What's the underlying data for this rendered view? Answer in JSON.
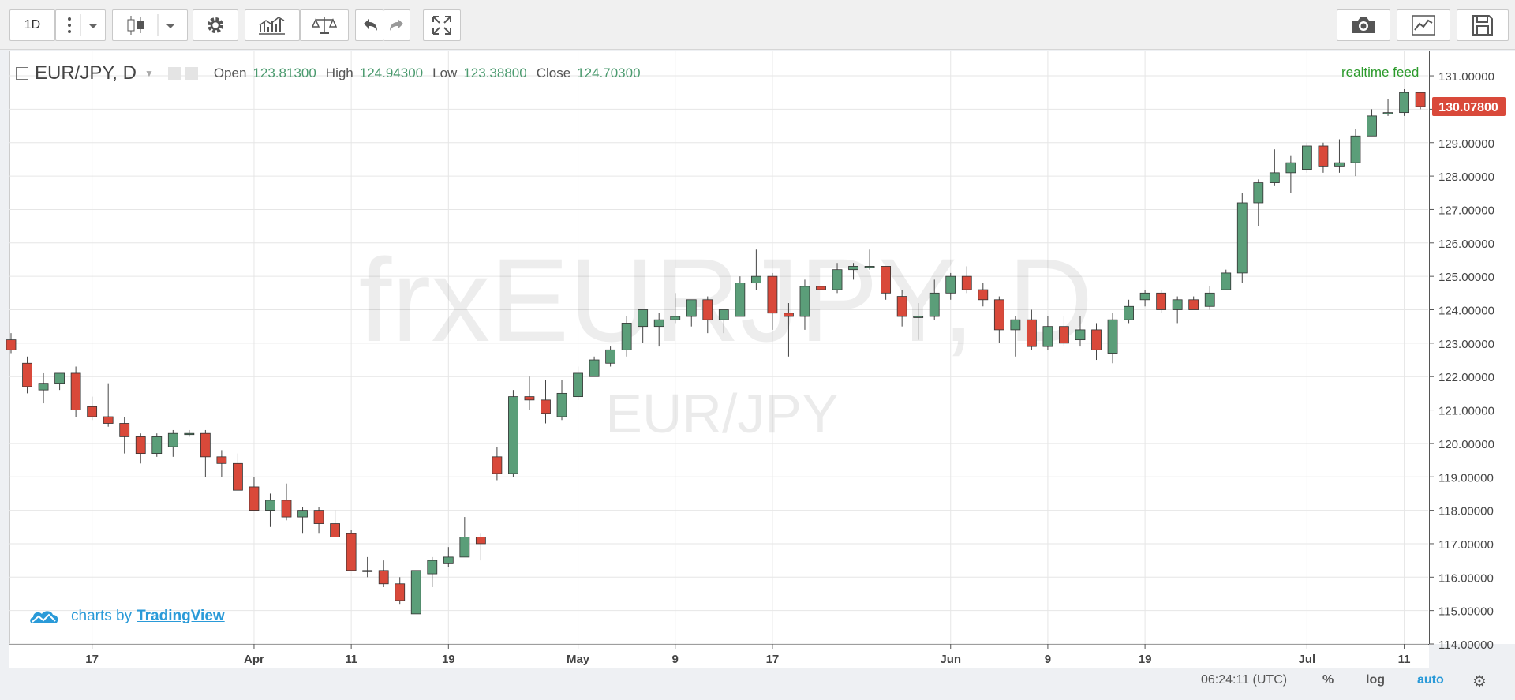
{
  "toolbar": {
    "interval": "1D",
    "icons": [
      "more-icon",
      "dropdown-arrow-icon",
      "candles-icon",
      "dropdown-arrow-icon",
      "gear-icon",
      "indicators-icon",
      "compare-icon",
      "undo-icon",
      "redo-icon",
      "fullscreen-icon",
      "camera-icon",
      "chart-icon",
      "save-icon"
    ]
  },
  "legend": {
    "symbol": "EUR/JPY, D",
    "open_label": "Open",
    "open": "123.81300",
    "high_label": "High",
    "high": "124.94300",
    "low_label": "Low",
    "low": "123.38800",
    "close_label": "Close",
    "close": "124.70300"
  },
  "watermark": {
    "main": "frxEURJPY, D",
    "sub": "EUR/JPY"
  },
  "realtime_label": "realtime feed",
  "current_price": "130.07800",
  "branding": {
    "prefix": "charts by",
    "link": "TradingView"
  },
  "status": {
    "time": "06:24:11 (UTC)",
    "percent": "%",
    "log": "log",
    "auto": "auto"
  },
  "colors": {
    "up": "#5b9e79",
    "down": "#d9493a",
    "price_tag": "#d9493a",
    "accent": "#2a9ad8"
  },
  "chart_data": {
    "type": "candlestick",
    "title": "EUR/JPY, D",
    "ylim": [
      114,
      131.4
    ],
    "y_ticks": [
      "131.00000",
      "130.00000",
      "129.00000",
      "128.00000",
      "127.00000",
      "126.00000",
      "125.00000",
      "124.00000",
      "123.00000",
      "122.00000",
      "121.00000",
      "120.00000",
      "119.00000",
      "118.00000",
      "117.00000",
      "116.00000",
      "115.00000",
      "114.00000"
    ],
    "x_ticks": [
      {
        "label": "17",
        "i": 5
      },
      {
        "label": "Apr",
        "i": 15
      },
      {
        "label": "11",
        "i": 21
      },
      {
        "label": "19",
        "i": 27
      },
      {
        "label": "May",
        "i": 35
      },
      {
        "label": "9",
        "i": 41
      },
      {
        "label": "17",
        "i": 47
      },
      {
        "label": "Jun",
        "i": 58
      },
      {
        "label": "9",
        "i": 64
      },
      {
        "label": "19",
        "i": 70
      },
      {
        "label": "Jul",
        "i": 80
      },
      {
        "label": "11",
        "i": 86
      }
    ],
    "grid": true,
    "candles": [
      {
        "o": 123.1,
        "h": 123.3,
        "l": 122.7,
        "c": 122.8
      },
      {
        "o": 122.4,
        "h": 122.6,
        "l": 121.5,
        "c": 121.7
      },
      {
        "o": 121.6,
        "h": 122.1,
        "l": 121.2,
        "c": 121.8
      },
      {
        "o": 121.8,
        "h": 122.1,
        "l": 121.6,
        "c": 122.1
      },
      {
        "o": 122.1,
        "h": 122.3,
        "l": 120.8,
        "c": 121.0
      },
      {
        "o": 121.1,
        "h": 121.4,
        "l": 120.7,
        "c": 120.8
      },
      {
        "o": 120.8,
        "h": 121.8,
        "l": 120.5,
        "c": 120.6
      },
      {
        "o": 120.6,
        "h": 120.8,
        "l": 119.7,
        "c": 120.2
      },
      {
        "o": 120.2,
        "h": 120.3,
        "l": 119.4,
        "c": 119.7
      },
      {
        "o": 119.7,
        "h": 120.3,
        "l": 119.6,
        "c": 120.2
      },
      {
        "o": 119.9,
        "h": 120.4,
        "l": 119.6,
        "c": 120.3
      },
      {
        "o": 120.3,
        "h": 120.4,
        "l": 120.2,
        "c": 120.3
      },
      {
        "o": 120.3,
        "h": 120.4,
        "l": 119.0,
        "c": 119.6
      },
      {
        "o": 119.6,
        "h": 119.8,
        "l": 119.0,
        "c": 119.4
      },
      {
        "o": 119.4,
        "h": 119.7,
        "l": 118.6,
        "c": 118.6
      },
      {
        "o": 118.7,
        "h": 119.0,
        "l": 118.0,
        "c": 118.0
      },
      {
        "o": 118.0,
        "h": 118.5,
        "l": 117.5,
        "c": 118.3
      },
      {
        "o": 118.3,
        "h": 118.8,
        "l": 117.7,
        "c": 117.8
      },
      {
        "o": 117.8,
        "h": 118.1,
        "l": 117.3,
        "c": 118.0
      },
      {
        "o": 118.0,
        "h": 118.1,
        "l": 117.3,
        "c": 117.6
      },
      {
        "o": 117.6,
        "h": 118.0,
        "l": 117.2,
        "c": 117.2
      },
      {
        "o": 117.3,
        "h": 117.4,
        "l": 116.2,
        "c": 116.2
      },
      {
        "o": 116.2,
        "h": 116.6,
        "l": 116.0,
        "c": 116.2
      },
      {
        "o": 116.2,
        "h": 116.5,
        "l": 115.7,
        "c": 115.8
      },
      {
        "o": 115.8,
        "h": 116.0,
        "l": 115.2,
        "c": 115.3
      },
      {
        "o": 114.9,
        "h": 116.2,
        "l": 114.9,
        "c": 116.2
      },
      {
        "o": 116.1,
        "h": 116.6,
        "l": 115.7,
        "c": 116.5
      },
      {
        "o": 116.4,
        "h": 116.9,
        "l": 116.3,
        "c": 116.6
      },
      {
        "o": 116.6,
        "h": 117.8,
        "l": 116.6,
        "c": 117.2
      },
      {
        "o": 117.2,
        "h": 117.3,
        "l": 116.5,
        "c": 117.0
      },
      {
        "o": 119.6,
        "h": 119.9,
        "l": 118.9,
        "c": 119.1
      },
      {
        "o": 119.1,
        "h": 121.6,
        "l": 119.0,
        "c": 121.4
      },
      {
        "o": 121.4,
        "h": 122.0,
        "l": 121.0,
        "c": 121.3
      },
      {
        "o": 121.3,
        "h": 121.9,
        "l": 120.6,
        "c": 120.9
      },
      {
        "o": 120.8,
        "h": 121.9,
        "l": 120.7,
        "c": 121.5
      },
      {
        "o": 121.4,
        "h": 122.3,
        "l": 121.3,
        "c": 122.1
      },
      {
        "o": 122.0,
        "h": 122.6,
        "l": 122.0,
        "c": 122.5
      },
      {
        "o": 122.4,
        "h": 122.9,
        "l": 122.3,
        "c": 122.8
      },
      {
        "o": 122.8,
        "h": 123.8,
        "l": 122.6,
        "c": 123.6
      },
      {
        "o": 123.5,
        "h": 124.0,
        "l": 123.0,
        "c": 124.0
      },
      {
        "o": 123.5,
        "h": 123.9,
        "l": 122.9,
        "c": 123.7
      },
      {
        "o": 123.7,
        "h": 124.5,
        "l": 123.6,
        "c": 123.8
      },
      {
        "o": 123.8,
        "h": 124.3,
        "l": 123.5,
        "c": 124.3
      },
      {
        "o": 124.3,
        "h": 124.4,
        "l": 123.3,
        "c": 123.7
      },
      {
        "o": 123.7,
        "h": 124.0,
        "l": 123.3,
        "c": 124.0
      },
      {
        "o": 123.8,
        "h": 125.0,
        "l": 123.8,
        "c": 124.8
      },
      {
        "o": 124.8,
        "h": 125.8,
        "l": 124.6,
        "c": 125.0
      },
      {
        "o": 125.0,
        "h": 125.1,
        "l": 123.4,
        "c": 123.9
      },
      {
        "o": 123.9,
        "h": 124.2,
        "l": 122.6,
        "c": 123.8
      },
      {
        "o": 123.8,
        "h": 124.9,
        "l": 123.4,
        "c": 124.7
      },
      {
        "o": 124.7,
        "h": 125.2,
        "l": 124.1,
        "c": 124.6
      },
      {
        "o": 124.6,
        "h": 125.4,
        "l": 124.5,
        "c": 125.2
      },
      {
        "o": 125.2,
        "h": 125.4,
        "l": 124.9,
        "c": 125.3
      },
      {
        "o": 125.3,
        "h": 125.8,
        "l": 125.2,
        "c": 125.3
      },
      {
        "o": 125.3,
        "h": 125.3,
        "l": 124.3,
        "c": 124.5
      },
      {
        "o": 124.4,
        "h": 124.6,
        "l": 123.5,
        "c": 123.8
      },
      {
        "o": 123.8,
        "h": 124.2,
        "l": 123.1,
        "c": 123.8
      },
      {
        "o": 123.8,
        "h": 124.9,
        "l": 123.7,
        "c": 124.5
      },
      {
        "o": 124.5,
        "h": 125.1,
        "l": 124.3,
        "c": 125.0
      },
      {
        "o": 125.0,
        "h": 125.3,
        "l": 124.5,
        "c": 124.6
      },
      {
        "o": 124.6,
        "h": 124.8,
        "l": 124.1,
        "c": 124.3
      },
      {
        "o": 124.3,
        "h": 124.4,
        "l": 123.0,
        "c": 123.4
      },
      {
        "o": 123.4,
        "h": 123.8,
        "l": 122.6,
        "c": 123.7
      },
      {
        "o": 123.7,
        "h": 124.0,
        "l": 122.8,
        "c": 122.9
      },
      {
        "o": 122.9,
        "h": 123.8,
        "l": 122.8,
        "c": 123.5
      },
      {
        "o": 123.5,
        "h": 123.8,
        "l": 122.9,
        "c": 123.0
      },
      {
        "o": 123.1,
        "h": 123.8,
        "l": 122.9,
        "c": 123.4
      },
      {
        "o": 123.4,
        "h": 123.6,
        "l": 122.5,
        "c": 122.8
      },
      {
        "o": 122.7,
        "h": 123.9,
        "l": 122.4,
        "c": 123.7
      },
      {
        "o": 123.7,
        "h": 124.3,
        "l": 123.6,
        "c": 124.1
      },
      {
        "o": 124.3,
        "h": 124.6,
        "l": 124.1,
        "c": 124.5
      },
      {
        "o": 124.5,
        "h": 124.6,
        "l": 123.9,
        "c": 124.0
      },
      {
        "o": 124.0,
        "h": 124.4,
        "l": 123.6,
        "c": 124.3
      },
      {
        "o": 124.3,
        "h": 124.4,
        "l": 124.0,
        "c": 124.0
      },
      {
        "o": 124.1,
        "h": 124.7,
        "l": 124.0,
        "c": 124.5
      },
      {
        "o": 124.6,
        "h": 125.2,
        "l": 124.6,
        "c": 125.1
      },
      {
        "o": 125.1,
        "h": 127.5,
        "l": 124.8,
        "c": 127.2
      },
      {
        "o": 127.2,
        "h": 127.9,
        "l": 126.5,
        "c": 127.8
      },
      {
        "o": 127.8,
        "h": 128.8,
        "l": 127.7,
        "c": 128.1
      },
      {
        "o": 128.1,
        "h": 128.6,
        "l": 127.5,
        "c": 128.4
      },
      {
        "o": 128.2,
        "h": 129.0,
        "l": 128.1,
        "c": 128.9
      },
      {
        "o": 128.9,
        "h": 129.0,
        "l": 128.1,
        "c": 128.3
      },
      {
        "o": 128.3,
        "h": 129.1,
        "l": 128.1,
        "c": 128.4
      },
      {
        "o": 128.4,
        "h": 129.4,
        "l": 128.0,
        "c": 129.2
      },
      {
        "o": 129.2,
        "h": 130.0,
        "l": 129.2,
        "c": 129.8
      },
      {
        "o": 129.9,
        "h": 130.3,
        "l": 129.8,
        "c": 129.9
      },
      {
        "o": 129.9,
        "h": 130.6,
        "l": 129.8,
        "c": 130.5
      },
      {
        "o": 130.5,
        "h": 130.5,
        "l": 130.0,
        "c": 130.08
      }
    ]
  }
}
